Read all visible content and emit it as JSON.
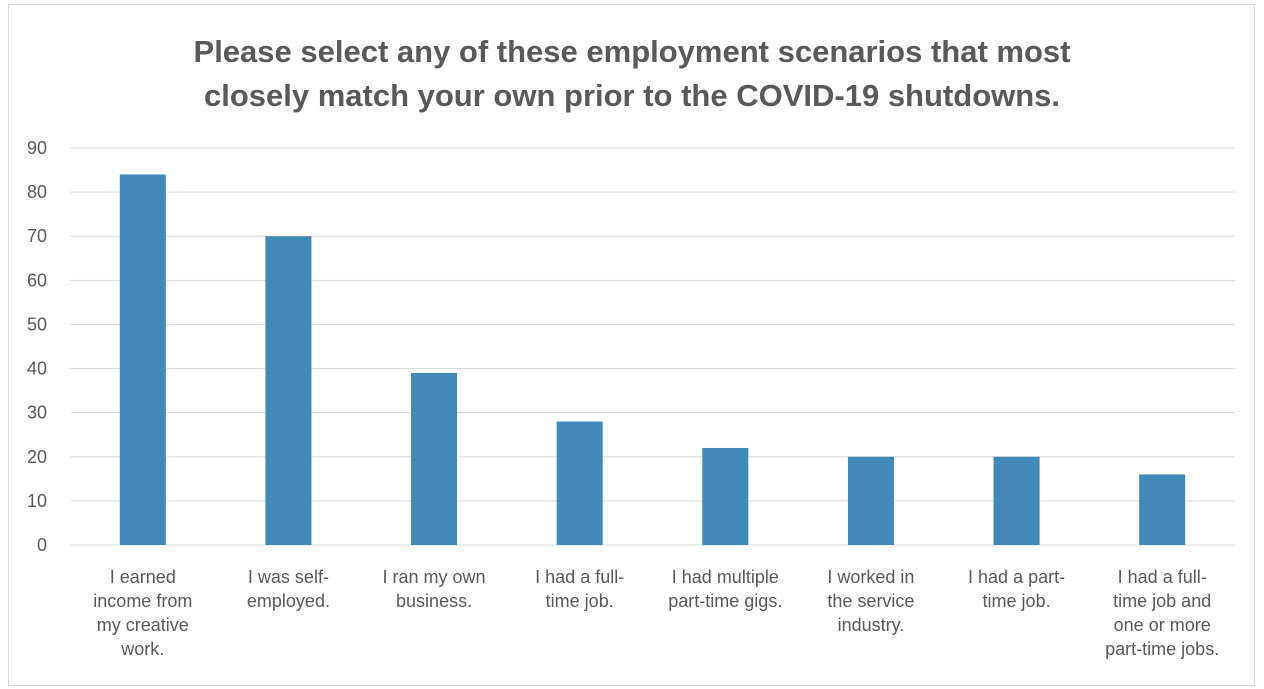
{
  "chart_data": {
    "type": "bar",
    "title_lines": [
      "Please select any of these employment scenarios that most",
      "closely match your own prior to the COVID-19 shutdowns."
    ],
    "categories": [
      [
        "I earned",
        "income from",
        "my creative",
        "work."
      ],
      [
        "I was self-",
        "employed."
      ],
      [
        "I ran my own",
        "business."
      ],
      [
        "I had a full-",
        "time job."
      ],
      [
        "I had multiple",
        "part-time gigs."
      ],
      [
        "I worked in",
        "the service",
        "industry."
      ],
      [
        "I had a part-",
        "time job."
      ],
      [
        "I had a full-",
        "time job and",
        "one or more",
        "part-time jobs."
      ]
    ],
    "values": [
      84,
      70,
      39,
      28,
      22,
      20,
      20,
      16
    ],
    "ylim": [
      0,
      90
    ],
    "yticks": [
      0,
      10,
      20,
      30,
      40,
      50,
      60,
      70,
      80,
      90
    ],
    "grid": true,
    "legend": "none",
    "bar_color": "#4189b6",
    "grid_color": "#d9d9d9",
    "text_color": "#595959"
  }
}
